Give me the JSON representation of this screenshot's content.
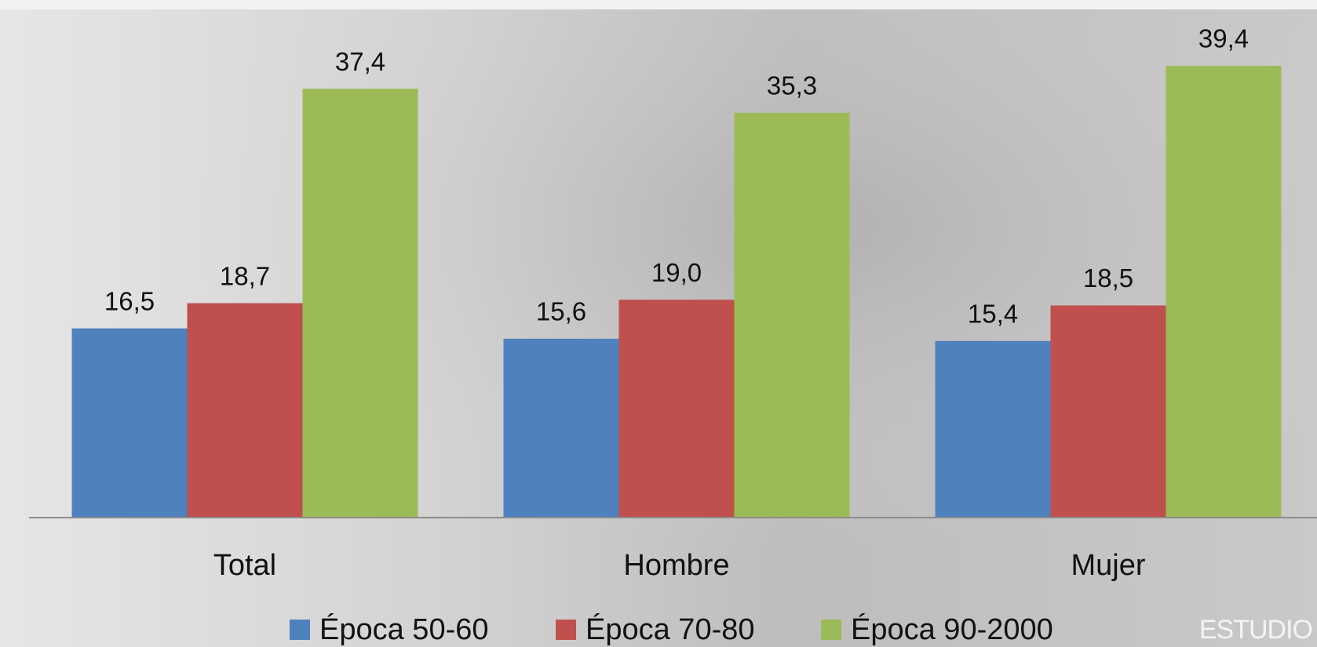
{
  "chart_data": {
    "type": "bar",
    "categories": [
      "Total",
      "Hombre",
      "Mujer"
    ],
    "series": [
      {
        "name": "Época 50-60",
        "color": "#4f81bd",
        "values": [
          16.5,
          15.6,
          15.4
        ],
        "value_labels": [
          "16,5",
          "15,6",
          "15,4"
        ]
      },
      {
        "name": "Época 70-80",
        "color": "#c0504d",
        "values": [
          18.7,
          19.0,
          18.5
        ],
        "value_labels": [
          "18,7",
          "19,0",
          "18,5"
        ]
      },
      {
        "name": "Época 90-2000",
        "color": "#9bbb59",
        "values": [
          37.4,
          35.3,
          39.4
        ],
        "value_labels": [
          "37,4",
          "35,3",
          "39,4"
        ]
      }
    ],
    "ylim": [
      0,
      45
    ],
    "legend": "bottom",
    "watermark": "ESTUDIO"
  }
}
